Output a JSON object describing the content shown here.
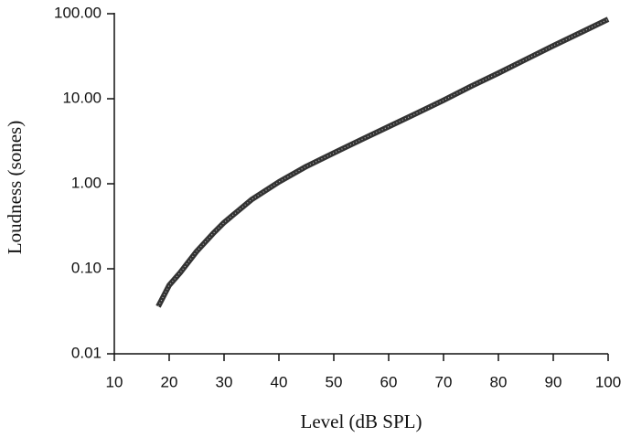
{
  "chart_data": {
    "type": "line",
    "x_label": "Level (dB SPL)",
    "y_label": "Loudness (sones)",
    "yscale": "log",
    "xlim": [
      10,
      100
    ],
    "ylim": [
      0.01,
      100
    ],
    "xticks": [
      10,
      20,
      30,
      40,
      50,
      60,
      70,
      80,
      90,
      100
    ],
    "yticks": [
      0.01,
      {
        "value": 0.1,
        "label": "0.10"
      },
      {
        "value": 1,
        "label": "1.00"
      },
      {
        "value": 10,
        "label": "10.00"
      },
      {
        "value": 100,
        "label": "100.00"
      }
    ],
    "x": [
      18,
      20,
      22,
      25,
      28,
      30,
      35,
      40,
      45,
      50,
      55,
      60,
      65,
      70,
      75,
      80,
      85,
      90,
      95,
      100
    ],
    "series": [
      {
        "color": "#333333",
        "values": [
          0.036,
          0.064,
          0.09,
          0.16,
          0.26,
          0.35,
          0.65,
          1.05,
          1.6,
          2.3,
          3.3,
          4.7,
          6.7,
          9.6,
          14,
          20,
          29,
          42,
          60,
          86
        ]
      }
    ]
  }
}
